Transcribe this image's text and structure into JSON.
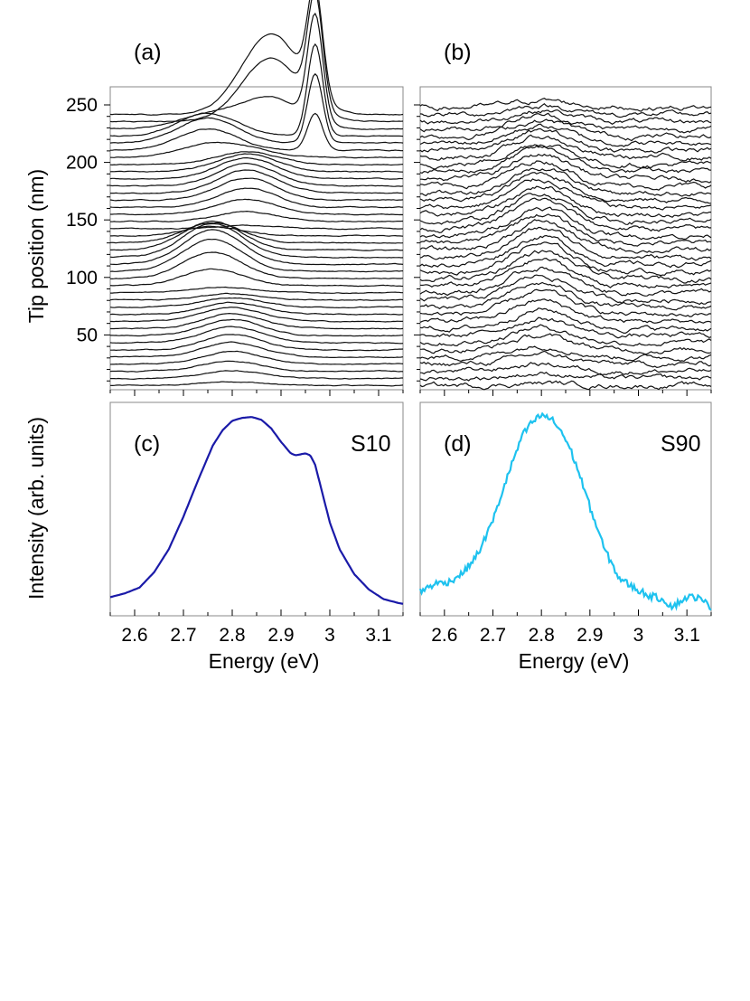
{
  "chart_data": [
    {
      "panel": "(a)",
      "type": "line",
      "description_key": "waterfall",
      "ylabel": "Tip position (nm)",
      "yticks": [
        50,
        100,
        150,
        200,
        250
      ],
      "ylim": [
        0,
        265
      ],
      "xlim": [
        2.55,
        3.15
      ],
      "n_spectra": 39,
      "spacing_nm": 6.2,
      "peaks": [
        {
          "energy": 2.8,
          "from_nm": 0,
          "to_nm": 90,
          "max_height_nm": 14
        },
        {
          "energy": 2.76,
          "from_nm": 85,
          "to_nm": 140,
          "max_height_nm": 30
        },
        {
          "energy": 2.83,
          "from_nm": 140,
          "to_nm": 210,
          "max_height_nm": 20
        },
        {
          "energy": 2.75,
          "from_nm": 200,
          "to_nm": 235,
          "max_height_nm": 22
        },
        {
          "energy": 2.97,
          "from_nm": 205,
          "to_nm": 265,
          "max_height_nm": 95
        },
        {
          "energy": 2.88,
          "from_nm": 225,
          "to_nm": 265,
          "max_height_nm": 72
        }
      ]
    },
    {
      "panel": "(b)",
      "type": "line",
      "description_key": "waterfall",
      "ylim": [
        0,
        265
      ],
      "xlim": [
        2.55,
        3.15
      ],
      "n_spectra": 40,
      "spacing_nm": 6.2,
      "peaks": [
        {
          "energy": 2.8,
          "from_nm": 0,
          "to_nm": 265,
          "max_height_nm": 25
        }
      ]
    },
    {
      "panel": "(c)",
      "type": "line",
      "sample": "S10",
      "color": "#1a1aa8",
      "xlabel": "Energy (eV)",
      "xticks": [
        2.6,
        2.7,
        2.8,
        2.9,
        3.0,
        3.1
      ],
      "xtick_labels": [
        "2.6",
        "2.7",
        "2.8",
        "2.9",
        "3",
        "3.1"
      ],
      "xlim": [
        2.55,
        3.15
      ],
      "ylim": [
        0,
        1.0
      ],
      "x": [
        2.55,
        2.58,
        2.61,
        2.64,
        2.67,
        2.7,
        2.73,
        2.76,
        2.78,
        2.8,
        2.82,
        2.84,
        2.86,
        2.88,
        2.9,
        2.92,
        2.93,
        2.95,
        2.96,
        2.97,
        2.98,
        3.0,
        3.02,
        3.05,
        3.08,
        3.11,
        3.14,
        3.15
      ],
      "y": [
        0.05,
        0.07,
        0.1,
        0.18,
        0.3,
        0.47,
        0.66,
        0.84,
        0.92,
        0.97,
        0.985,
        0.99,
        0.975,
        0.93,
        0.86,
        0.8,
        0.79,
        0.8,
        0.79,
        0.74,
        0.64,
        0.44,
        0.3,
        0.17,
        0.09,
        0.04,
        0.02,
        0.015
      ]
    },
    {
      "panel": "(d)",
      "type": "line",
      "sample": "S90",
      "color": "#1ec2ef",
      "xlabel": "Energy (eV)",
      "xticks": [
        2.6,
        2.7,
        2.8,
        2.9,
        3.0,
        3.1
      ],
      "xtick_labels": [
        "2.6",
        "2.7",
        "2.8",
        "2.9",
        "3",
        "3.1"
      ],
      "xlim": [
        2.55,
        3.15
      ],
      "ylim": [
        0,
        1.0
      ],
      "x": [
        2.55,
        2.58,
        2.61,
        2.64,
        2.67,
        2.7,
        2.73,
        2.76,
        2.78,
        2.8,
        2.82,
        2.84,
        2.86,
        2.88,
        2.9,
        2.93,
        2.96,
        2.99,
        3.02,
        3.05,
        3.07,
        3.1,
        3.12,
        3.15
      ],
      "y": [
        0.08,
        0.12,
        0.13,
        0.18,
        0.28,
        0.45,
        0.68,
        0.89,
        0.96,
        1.0,
        0.98,
        0.92,
        0.82,
        0.68,
        0.52,
        0.3,
        0.15,
        0.1,
        0.06,
        0.04,
        0.0,
        0.05,
        0.05,
        0.0
      ],
      "noise": 0.018
    }
  ],
  "labels": {
    "a": "(a)",
    "b": "(b)",
    "c": "(c)",
    "d": "(d)",
    "s10": "S10",
    "s90": "S90",
    "y_top": "Tip position (nm)",
    "y_bottom": "Intensity (arb. units)",
    "x_left": "Energy (eV)",
    "x_right": "Energy (eV)"
  }
}
